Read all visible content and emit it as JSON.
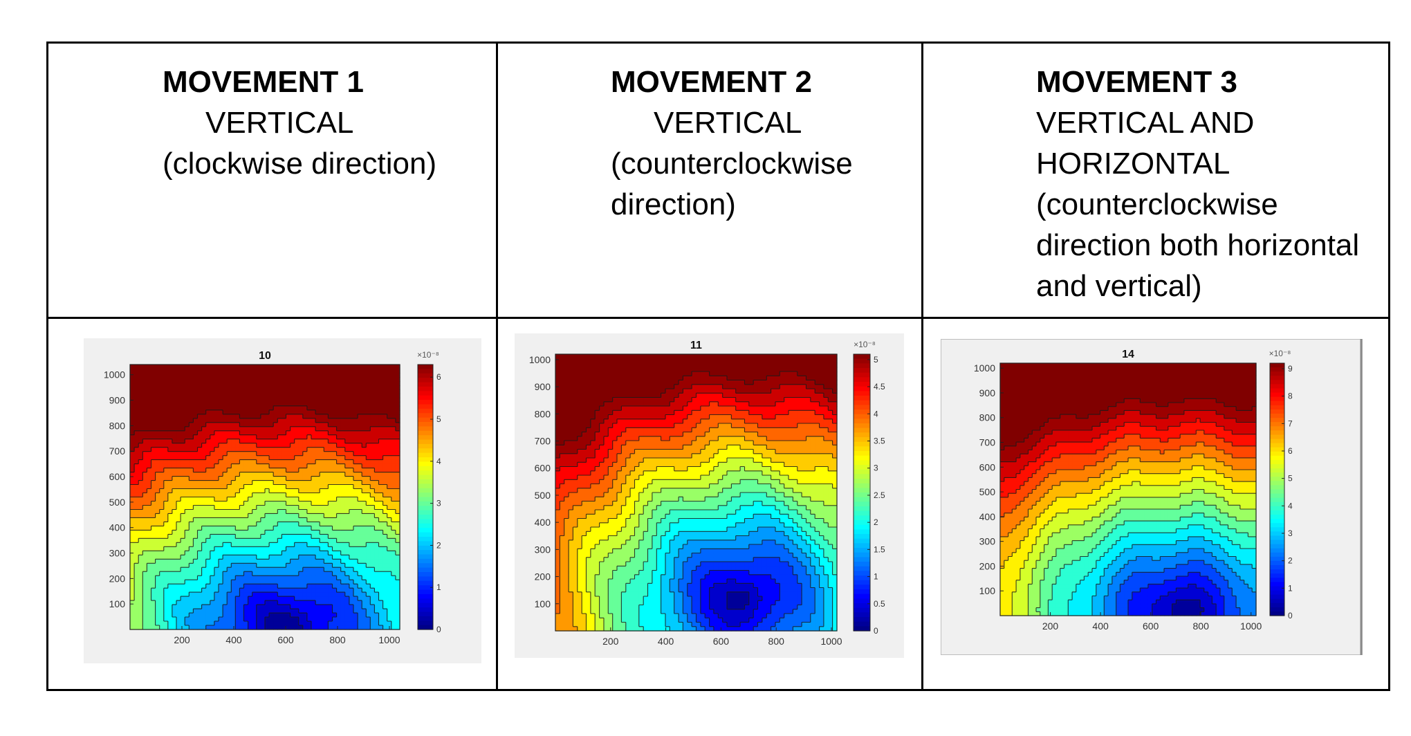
{
  "header": [
    {
      "title": "MOVEMENT 1",
      "lines": [
        "VERTICAL",
        "(clockwise direction)"
      ]
    },
    {
      "title": "MOVEMENT 2",
      "lines": [
        "VERTICAL",
        "(counterclockwise",
        "direction)"
      ]
    },
    {
      "title": "MOVEMENT 3",
      "lines": [
        "VERTICAL AND",
        "HORIZONTAL",
        "(counterclockwise",
        "direction both horizontal",
        "and vertical)"
      ]
    }
  ],
  "chart_data": [
    {
      "type": "heatmap",
      "title": "10",
      "x_ticks": [
        200,
        400,
        600,
        800,
        1000
      ],
      "y_ticks": [
        100,
        200,
        300,
        400,
        500,
        600,
        700,
        800,
        900,
        1000
      ],
      "xlim": [
        0,
        1040
      ],
      "ylim": [
        0,
        1040
      ],
      "colorbar_exponent": "×10⁻⁸",
      "colorbar_ticks": [
        "0",
        "1",
        "2",
        "3",
        "4",
        "5",
        "6"
      ],
      "colorbar_range": [
        0,
        6.3
      ],
      "colormap": "jet",
      "min_location": [
        610,
        20
      ],
      "peak_region": "top",
      "contour_levels": 20
    },
    {
      "type": "heatmap",
      "title": "11",
      "x_ticks": [
        200,
        400,
        600,
        800,
        1000
      ],
      "y_ticks": [
        100,
        200,
        300,
        400,
        500,
        600,
        700,
        800,
        900,
        1000
      ],
      "xlim": [
        0,
        1020
      ],
      "ylim": [
        0,
        1020
      ],
      "colorbar_exponent": "×10⁻⁸",
      "colorbar_ticks": [
        "0",
        "0.5",
        "1",
        "1.5",
        "2",
        "2.5",
        "3",
        "3.5",
        "4",
        "4.5",
        "5"
      ],
      "colorbar_range": [
        0,
        5.1
      ],
      "colormap": "jet",
      "min_location": [
        680,
        120
      ],
      "peak_region": "top-left",
      "contour_levels": 20
    },
    {
      "type": "heatmap",
      "title": "14",
      "x_ticks": [
        200,
        400,
        600,
        800,
        1000
      ],
      "y_ticks": [
        100,
        200,
        300,
        400,
        500,
        600,
        700,
        800,
        900,
        1000
      ],
      "xlim": [
        0,
        1020
      ],
      "ylim": [
        0,
        1020
      ],
      "colorbar_exponent": "×10⁻⁸",
      "colorbar_ticks": [
        "0",
        "1",
        "2",
        "3",
        "4",
        "5",
        "6",
        "7",
        "8",
        "9"
      ],
      "colorbar_range": [
        0,
        9.2
      ],
      "colormap": "jet",
      "min_location": [
        720,
        20
      ],
      "peak_region": "top",
      "contour_levels": 18
    }
  ]
}
